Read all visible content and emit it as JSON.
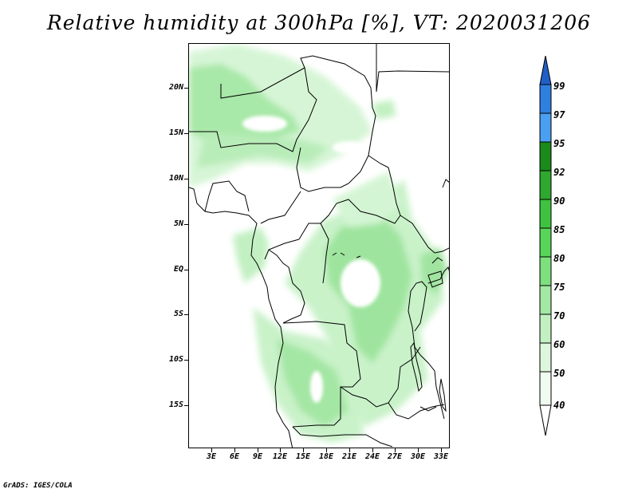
{
  "title": "Relative humidity at 300hPa [%], VT: 2020031206",
  "credit": "GrADS: IGES/COLA",
  "map": {
    "lat_range": [
      -19,
      25
    ],
    "lon_range": [
      0.5,
      34.5
    ],
    "lat_labels": [
      "20N",
      "15N",
      "10N",
      "5N",
      "EQ",
      "5S",
      "10S",
      "15S"
    ],
    "lon_labels": [
      "3E",
      "6E",
      "9E",
      "12E",
      "15E",
      "18E",
      "21E",
      "24E",
      "27E",
      "30E",
      "33E"
    ]
  },
  "colorbar": {
    "labels": [
      "99",
      "97",
      "95",
      "92",
      "90",
      "85",
      "80",
      "75",
      "70",
      "60",
      "50",
      "40"
    ],
    "colors": [
      "#1f5fc8",
      "#2f7fe0",
      "#4a9ff0",
      "#1a8a1a",
      "#2ea82e",
      "#3fc23f",
      "#58d458",
      "#7ddf7d",
      "#a3e8a3",
      "#c2f0c2",
      "#ddf7dd",
      "#f0fcf0"
    ]
  }
}
